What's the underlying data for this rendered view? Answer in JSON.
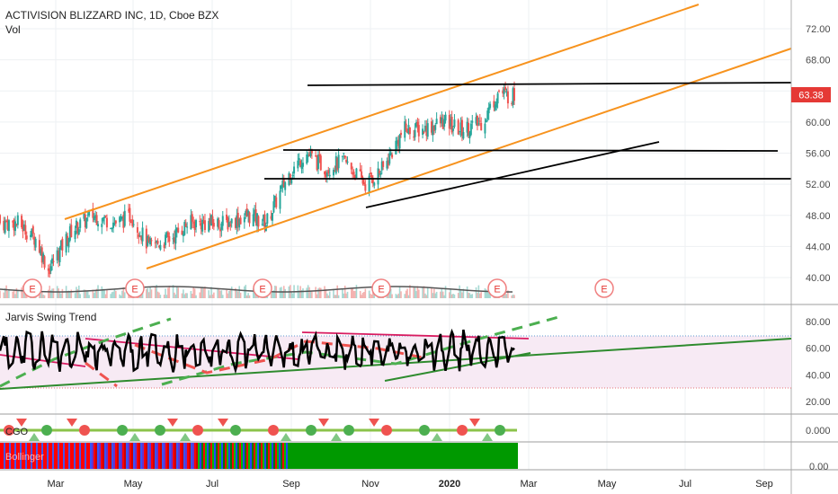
{
  "header": {
    "symbol_line": "ACTIVISION BLIZZARD INC, 1D, Cboe BZX",
    "volume_label": "Vol"
  },
  "price_axis": {
    "ticks": [
      "72.00",
      "68.00",
      "64.00",
      "60.00",
      "56.00",
      "52.00",
      "48.00",
      "44.00",
      "40.00"
    ],
    "last_price": "63.38",
    "last_price_color": "#e53935"
  },
  "earnings_marker": "E",
  "indicator_panel": {
    "title": "Jarvis Swing Trend",
    "ticks": [
      "80.00",
      "60.00",
      "40.00",
      "20.00"
    ]
  },
  "cgo_panel": {
    "title": "CGO",
    "tick": "0.000"
  },
  "bottom_panel": {
    "title": "Bollinger",
    "tick": "0.00"
  },
  "time_axis": {
    "labels": [
      "Mar",
      "May",
      "Jul",
      "Sep",
      "Nov",
      "2020",
      "Mar",
      "May",
      "Jul",
      "Sep"
    ]
  },
  "colors": {
    "channel": "#f7931e",
    "level": "#000000",
    "trendline": "#111111",
    "up": "#26a69a",
    "down": "#ef5350",
    "swing_line": "#000000",
    "green_line": "#2e8b2e",
    "pink_line": "#d81b60"
  },
  "chart_data": {
    "type": "candlestick",
    "title": "ACTIVISION BLIZZARD INC, 1D, Cboe BZX",
    "ylim": [
      37,
      75
    ],
    "last_close": 63.38,
    "close_path": [
      {
        "x": "2019-02-01",
        "y": 47
      },
      {
        "x": "2019-02-15",
        "y": 45
      },
      {
        "x": "2019-02-25",
        "y": 41
      },
      {
        "x": "2019-03-15",
        "y": 46
      },
      {
        "x": "2019-04-01",
        "y": 48
      },
      {
        "x": "2019-04-20",
        "y": 47
      },
      {
        "x": "2019-05-01",
        "y": 48
      },
      {
        "x": "2019-05-15",
        "y": 44
      },
      {
        "x": "2019-06-01",
        "y": 45
      },
      {
        "x": "2019-06-15",
        "y": 47
      },
      {
        "x": "2019-07-01",
        "y": 47
      },
      {
        "x": "2019-07-15",
        "y": 47
      },
      {
        "x": "2019-08-01",
        "y": 48
      },
      {
        "x": "2019-08-15",
        "y": 47
      },
      {
        "x": "2019-09-01",
        "y": 53
      },
      {
        "x": "2019-09-15",
        "y": 56
      },
      {
        "x": "2019-10-01",
        "y": 54
      },
      {
        "x": "2019-10-15",
        "y": 55
      },
      {
        "x": "2019-11-01",
        "y": 52
      },
      {
        "x": "2019-11-15",
        "y": 54
      },
      {
        "x": "2019-12-01",
        "y": 59
      },
      {
        "x": "2019-12-15",
        "y": 59
      },
      {
        "x": "2020-01-01",
        "y": 60
      },
      {
        "x": "2020-01-15",
        "y": 59
      },
      {
        "x": "2020-02-01",
        "y": 60
      },
      {
        "x": "2020-02-14",
        "y": 64
      },
      {
        "x": "2020-02-20",
        "y": 63.38
      }
    ],
    "horizontal_levels": [
      64.6,
      56.2,
      52.8
    ],
    "indicator_ylim": [
      10,
      90
    ]
  }
}
